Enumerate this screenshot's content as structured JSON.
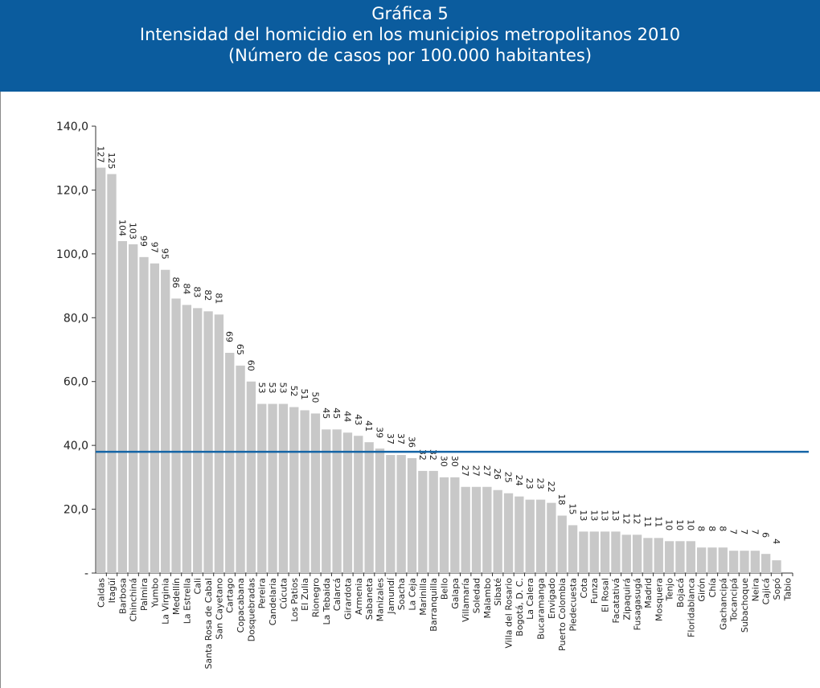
{
  "header": {
    "line1": "Gráfica 5",
    "line2": "Intensidad del homicidio en los municipios metropolitanos 2010",
    "line3": "(Número de casos por 100.000 habitantes)"
  },
  "colors": {
    "header_bg": "#0b5c9e",
    "bar": "#c8c8c8",
    "reference_line": "#1565a6"
  },
  "chart_data": {
    "type": "bar",
    "title": "Intensidad del homicidio en los municipios metropolitanos 2010",
    "subtitle": "(Número de casos por 100.000 habitantes)",
    "xlabel": "",
    "ylabel": "",
    "ylim": [
      0,
      140
    ],
    "yticks": [
      0,
      20,
      40,
      60,
      80,
      100,
      120,
      140
    ],
    "ytick_labels": [
      "-",
      "20,0",
      "40,0",
      "60,0",
      "80,0",
      "100,0",
      "120,0",
      "140,0"
    ],
    "grid": false,
    "reference_line": 38,
    "categories": [
      "Caldas",
      "Itagüí",
      "Barbosa",
      "Chinchiná",
      "Palmira",
      "Yumbo",
      "La Virginia",
      "Medellín",
      "La Estrella",
      "Cali",
      "Santa Rosa de Cabal",
      "San Cayetano",
      "Cartago",
      "Copacabana",
      "Dosquebradas",
      "Pereira",
      "Candelaria",
      "Cúcuta",
      "Los Patios",
      "El Zulia",
      "Rionegro",
      "La Tebaida",
      "Calarcá",
      "Girardota",
      "Armenia",
      "Sabaneta",
      "Manizales",
      "Jamundí",
      "Soacha",
      "La Ceja",
      "Marinilla",
      "Barranquilla",
      "Bello",
      "Galapa",
      "Villamaría",
      "Soledad",
      "Malambo",
      "Sibaté",
      "Villa del Rosario",
      "Bogotá, D. C.",
      "La Calera",
      "Bucaramanga",
      "Envigado",
      "Puerto Colombia",
      "Piedecuesta",
      "Cota",
      "Funza",
      "El Rosal",
      "Facatativá",
      "Zipaquirá",
      "Fusagasugá",
      "Madrid",
      "Mosquera",
      "Tenjo",
      "Bojacá",
      "Floridablanca",
      "Girón",
      "Chía",
      "Gachancipá",
      "Tocancipá",
      "Subachoque",
      "Neira",
      "Cajicá",
      "Sopó",
      "Tabio"
    ],
    "values": [
      127,
      125,
      104,
      103,
      99,
      97,
      95,
      86,
      84,
      83,
      82,
      81,
      69,
      65,
      60,
      53,
      53,
      53,
      52,
      51,
      50,
      45,
      45,
      44,
      43,
      41,
      39,
      37,
      37,
      36,
      32,
      32,
      30,
      30,
      27,
      27,
      27,
      26,
      25,
      24,
      23,
      23,
      22,
      18,
      15,
      13,
      13,
      13,
      13,
      12,
      12,
      11,
      11,
      10,
      10,
      10,
      8,
      8,
      8,
      7,
      7,
      7,
      6,
      4,
      null
    ],
    "value_labels": [
      "127",
      "125",
      "104",
      "103",
      "99",
      "97",
      "95",
      "86",
      "84",
      "83",
      "82",
      "81",
      "69",
      "65",
      "60",
      "53",
      "53",
      "53",
      "52",
      "51",
      "50",
      "45",
      "45",
      "44",
      "43",
      "41",
      "39",
      "37",
      "37",
      "36",
      "32",
      "32",
      "30",
      "30",
      "27",
      "27",
      "27",
      "26",
      "25",
      "24",
      "23",
      "23",
      "22",
      "18",
      "15",
      "13",
      "13",
      "13",
      "13",
      "12",
      "12",
      "11",
      "11",
      "10",
      "10",
      "10",
      "8",
      "8",
      "8",
      "7",
      "7",
      "7",
      "6",
      "4",
      ""
    ]
  }
}
